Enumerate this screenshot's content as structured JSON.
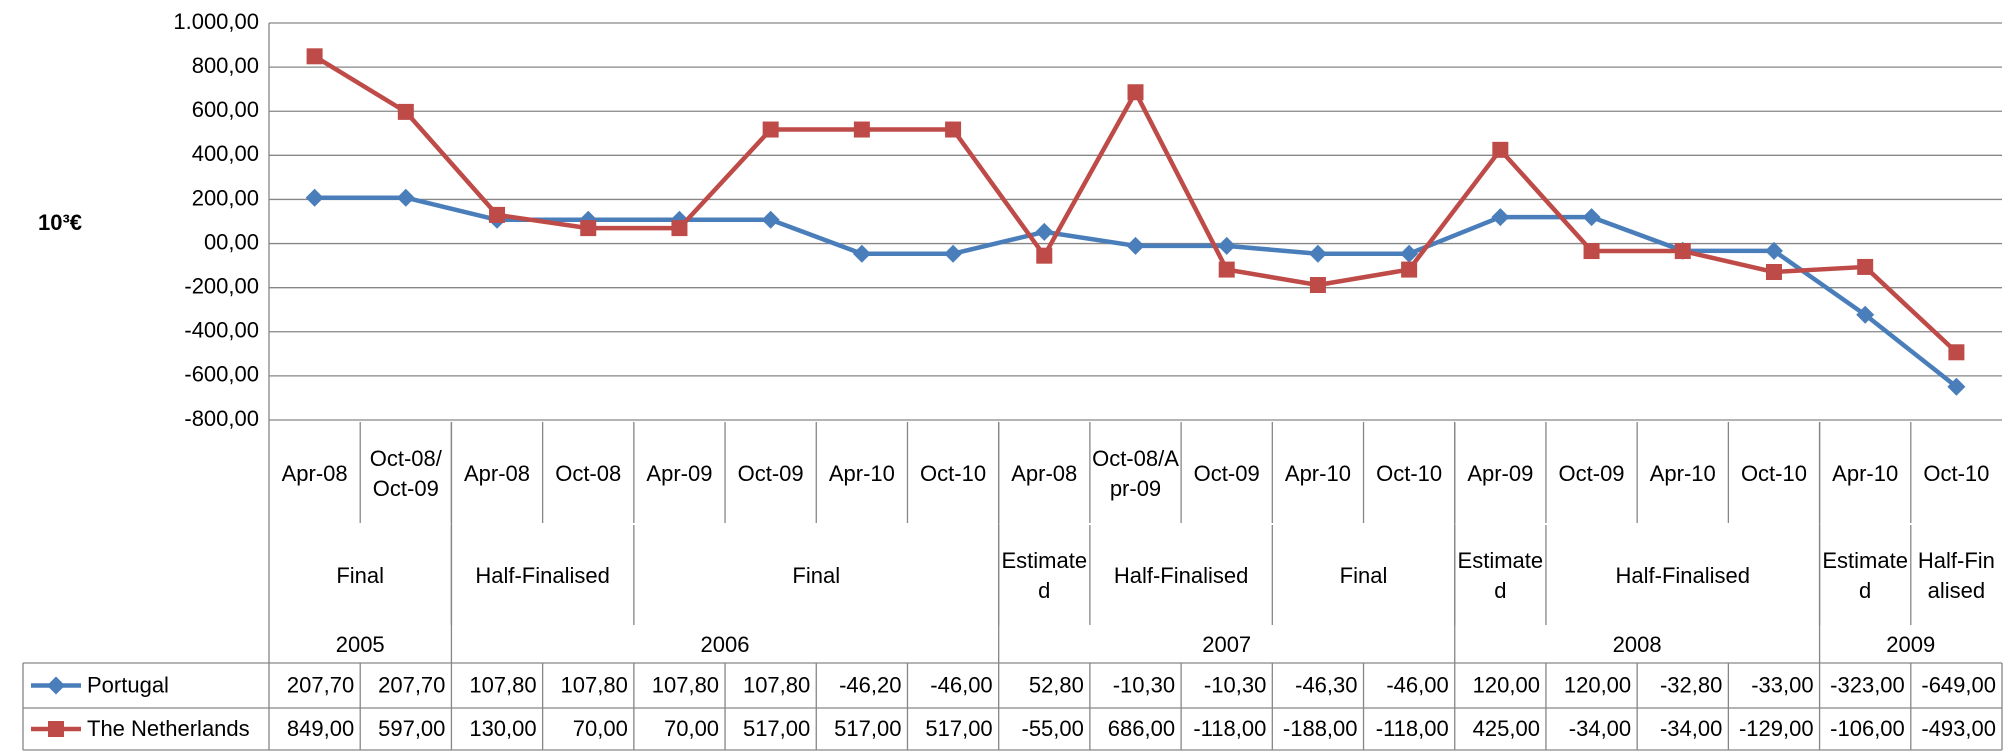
{
  "chart_data": {
    "type": "line",
    "y_axis_label": "10³€",
    "categories": [
      "Apr-08",
      "Oct-08/Oct-09",
      "Apr-08",
      "Oct-08",
      "Apr-09",
      "Oct-09",
      "Apr-10",
      "Oct-10",
      "Apr-08",
      "Oct-08/Apr-09",
      "Oct-09",
      "Apr-10",
      "Oct-10",
      "Apr-09",
      "Oct-09",
      "Apr-10",
      "Oct-10",
      "Apr-10",
      "Oct-10"
    ],
    "status_groups": [
      {
        "label": "Final",
        "span": 2
      },
      {
        "label": "Half-Finalised",
        "span": 2
      },
      {
        "label": "Final",
        "span": 4
      },
      {
        "label": "Estimated",
        "span": 1
      },
      {
        "label": "Half-Finalised",
        "span": 2
      },
      {
        "label": "Final",
        "span": 2
      },
      {
        "label": "Estimated",
        "span": 1
      },
      {
        "label": "Half-Finalised",
        "span": 3
      },
      {
        "label": "Estimated",
        "span": 1
      },
      {
        "label": "Half-Finalised",
        "span": 1
      }
    ],
    "year_groups": [
      {
        "label": "2005",
        "span": 2
      },
      {
        "label": "2006",
        "span": 6
      },
      {
        "label": "2007",
        "span": 5
      },
      {
        "label": "2008",
        "span": 4
      },
      {
        "label": "2009",
        "span": 2
      }
    ],
    "series": [
      {
        "name": "Portugal",
        "color": "#4a7ebb",
        "marker": "diamond",
        "values": [
          207.7,
          207.7,
          107.8,
          107.8,
          107.8,
          107.8,
          -46.2,
          -46,
          52.8,
          -10.3,
          -10.3,
          -46.3,
          -46,
          120,
          120,
          -32.8,
          -33,
          -323,
          -649
        ],
        "value_labels": [
          "207,70",
          "207,70",
          "107,80",
          "107,80",
          "107,80",
          "107,80",
          "-46,20",
          "-46,00",
          "52,80",
          "-10,30",
          "-10,30",
          "-46,30",
          "-46,00",
          "120,00",
          "120,00",
          "-32,80",
          "-33,00",
          "-323,00",
          "-649,00"
        ]
      },
      {
        "name": "The Netherlands",
        "color": "#be4b48",
        "marker": "square",
        "values": [
          849,
          597,
          130,
          70,
          70,
          517,
          517,
          517,
          -55,
          686,
          -118,
          -188,
          -118,
          425,
          -34,
          -34,
          -129,
          -106,
          -493
        ],
        "value_labels": [
          "849,00",
          "597,00",
          "130,00",
          "70,00",
          "70,00",
          "517,00",
          "517,00",
          "517,00",
          "-55,00",
          "686,00",
          "-118,00",
          "-188,00",
          "-118,00",
          "425,00",
          "-34,00",
          "-34,00",
          "-129,00",
          "-106,00",
          "-493,00"
        ]
      }
    ],
    "ylim": [
      -800,
      1000
    ],
    "yticks": [
      {
        "value": -800,
        "label": "-800,00"
      },
      {
        "value": -600,
        "label": "-600,00"
      },
      {
        "value": -400,
        "label": "-400,00"
      },
      {
        "value": -200,
        "label": "-200,00"
      },
      {
        "value": 0,
        "label": "00,00"
      },
      {
        "value": 200,
        "label": "200,00"
      },
      {
        "value": 400,
        "label": "400,00"
      },
      {
        "value": 600,
        "label": "600,00"
      },
      {
        "value": 800,
        "label": "800,00"
      },
      {
        "value": 1000,
        "label": "1.000,00"
      }
    ],
    "grid": true
  }
}
